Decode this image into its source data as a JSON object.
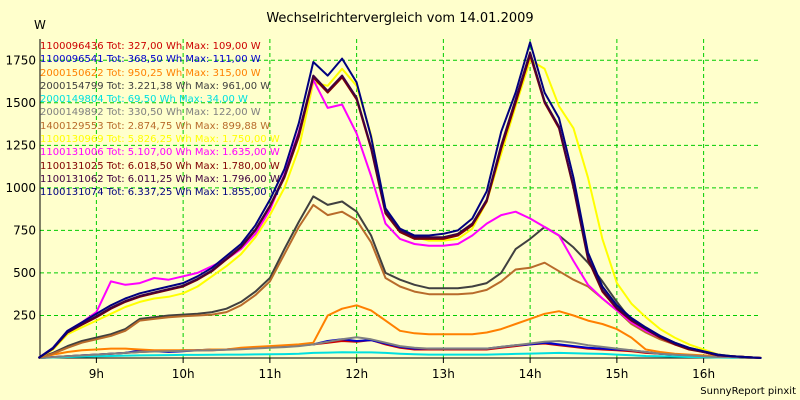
{
  "chart_data": {
    "type": "line",
    "title": "Wechselrichtervergleich vom 14.01.2009",
    "ylabel": "W",
    "footer": "SunnyReport pinxit",
    "ylim": [
      0,
      1875
    ],
    "xlim": [
      8.35,
      16.65
    ],
    "y_ticks": [
      250,
      500,
      750,
      1000,
      1250,
      1500,
      1750
    ],
    "x_ticks": [
      9,
      10,
      11,
      12,
      13,
      14,
      15,
      16
    ],
    "x_tick_labels": [
      "9h",
      "10h",
      "11h",
      "12h",
      "13h",
      "14h",
      "15h",
      "16h"
    ],
    "grid": true,
    "legend_position": "top-left",
    "x": [
      8.333,
      8.5,
      8.667,
      8.833,
      9.0,
      9.167,
      9.333,
      9.5,
      9.667,
      9.833,
      10.0,
      10.167,
      10.333,
      10.5,
      10.667,
      10.833,
      11.0,
      11.167,
      11.333,
      11.5,
      11.667,
      11.833,
      12.0,
      12.167,
      12.333,
      12.5,
      12.667,
      12.833,
      13.0,
      13.167,
      13.333,
      13.5,
      13.667,
      13.833,
      14.0,
      14.167,
      14.333,
      14.5,
      14.667,
      14.833,
      15.0,
      15.167,
      15.333,
      15.5,
      15.667,
      15.833,
      16.0,
      16.167,
      16.333,
      16.5,
      16.667
    ],
    "series": [
      {
        "name": "1100096436",
        "label": "1100096436 Tot: 327,00 Wh Max: 109,00 W",
        "color": "#cc0000",
        "values": [
          0,
          5,
          10,
          15,
          20,
          25,
          30,
          35,
          40,
          40,
          45,
          45,
          45,
          50,
          55,
          60,
          65,
          70,
          75,
          80,
          90,
          100,
          95,
          105,
          80,
          60,
          50,
          50,
          50,
          50,
          50,
          50,
          60,
          70,
          80,
          85,
          75,
          65,
          55,
          50,
          45,
          40,
          30,
          25,
          20,
          15,
          10,
          5,
          5,
          0,
          0
        ]
      },
      {
        "name": "1100096541",
        "label": "1100096541 Tot: 368,50 Wh Max: 111,00 W",
        "color": "#0000cc",
        "values": [
          0,
          5,
          10,
          15,
          20,
          25,
          30,
          45,
          40,
          35,
          40,
          45,
          50,
          50,
          55,
          60,
          65,
          70,
          75,
          80,
          100,
          110,
          100,
          105,
          85,
          65,
          55,
          55,
          55,
          55,
          55,
          55,
          65,
          75,
          80,
          90,
          80,
          70,
          60,
          55,
          50,
          45,
          35,
          25,
          20,
          15,
          10,
          5,
          5,
          0,
          0
        ]
      },
      {
        "name": "2000150622",
        "label": "2000150622 Tot: 950,25 Wh Max: 315,00 W",
        "color": "#ff8000",
        "values": [
          0,
          20,
          35,
          45,
          50,
          55,
          55,
          50,
          45,
          45,
          45,
          45,
          50,
          50,
          60,
          65,
          70,
          75,
          80,
          90,
          250,
          290,
          310,
          280,
          220,
          160,
          145,
          140,
          140,
          140,
          140,
          150,
          170,
          200,
          230,
          260,
          275,
          250,
          220,
          200,
          170,
          120,
          50,
          35,
          25,
          20,
          15,
          10,
          5,
          0,
          0
        ]
      },
      {
        "name": "2000154799",
        "label": "2000154799 Tot: 3.221,38 Wh Max: 961,00 W",
        "color": "#404040",
        "values": [
          0,
          30,
          70,
          100,
          120,
          140,
          170,
          230,
          240,
          250,
          255,
          260,
          270,
          290,
          330,
          390,
          470,
          640,
          800,
          950,
          900,
          920,
          860,
          720,
          500,
          460,
          430,
          410,
          410,
          410,
          420,
          440,
          500,
          640,
          700,
          770,
          720,
          650,
          560,
          450,
          330,
          220,
          170,
          130,
          90,
          60,
          40,
          20,
          10,
          5,
          0
        ]
      },
      {
        "name": "2000149804",
        "label": "2000149804 Tot: 69,50 Wh Max: 34,00 W",
        "color": "#00e0e0",
        "values": [
          0,
          3,
          6,
          8,
          10,
          12,
          14,
          15,
          16,
          17,
          18,
          18,
          19,
          20,
          20,
          21,
          22,
          23,
          25,
          30,
          32,
          34,
          33,
          33,
          30,
          25,
          22,
          20,
          20,
          20,
          20,
          20,
          22,
          24,
          26,
          28,
          30,
          28,
          26,
          24,
          20,
          16,
          12,
          10,
          8,
          6,
          4,
          3,
          2,
          1,
          0
        ]
      },
      {
        "name": "2000149892",
        "label": "2000149892 Tot: 330,50 Wh Max: 122,00 W",
        "color": "#808080",
        "values": [
          0,
          5,
          10,
          15,
          20,
          25,
          30,
          35,
          38,
          40,
          42,
          44,
          46,
          48,
          52,
          56,
          60,
          64,
          70,
          80,
          95,
          110,
          122,
          110,
          90,
          70,
          60,
          55,
          55,
          55,
          55,
          55,
          65,
          75,
          85,
          95,
          100,
          90,
          75,
          65,
          55,
          45,
          35,
          25,
          20,
          15,
          10,
          5,
          5,
          0,
          0
        ]
      },
      {
        "name": "1400129553",
        "label": "1400129553 Tot: 2.874,75 Wh Max: 899,88 W",
        "color": "#b86b2b",
        "values": [
          0,
          25,
          60,
          90,
          110,
          130,
          160,
          220,
          230,
          240,
          245,
          250,
          255,
          270,
          310,
          370,
          450,
          610,
          770,
          900,
          840,
          860,
          810,
          680,
          470,
          420,
          390,
          375,
          375,
          375,
          380,
          400,
          450,
          520,
          530,
          560,
          510,
          460,
          420,
          350,
          280,
          200,
          150,
          110,
          80,
          55,
          35,
          15,
          10,
          5,
          0
        ]
      },
      {
        "name": "1100130969",
        "label": "1100130969 Tot: 5.826,25 Wh Max: 1.750,00 W",
        "color": "#ffff00",
        "values": [
          0,
          50,
          140,
          180,
          220,
          260,
          300,
          330,
          350,
          360,
          380,
          420,
          480,
          540,
          610,
          710,
          840,
          1000,
          1230,
          1620,
          1600,
          1700,
          1600,
          1310,
          860,
          760,
          710,
          690,
          690,
          700,
          760,
          920,
          1200,
          1480,
          1750,
          1700,
          1480,
          1350,
          1060,
          700,
          440,
          320,
          240,
          170,
          120,
          80,
          50,
          20,
          10,
          5,
          0
        ]
      },
      {
        "name": "1100131006",
        "label": "1100131006 Tot: 5.107,00 Wh Max: 1.635,00 W",
        "color": "#ff00ff",
        "values": [
          0,
          60,
          160,
          210,
          270,
          450,
          430,
          440,
          470,
          460,
          480,
          500,
          540,
          580,
          640,
          730,
          870,
          1080,
          1330,
          1635,
          1470,
          1490,
          1320,
          1070,
          790,
          700,
          670,
          660,
          660,
          670,
          720,
          790,
          840,
          860,
          820,
          770,
          720,
          570,
          430,
          350,
          280,
          210,
          160,
          120,
          80,
          55,
          35,
          15,
          10,
          5,
          0
        ]
      },
      {
        "name": "1100131025",
        "label": "1100131025 Tot: 6.018,50 Wh Max: 1.780,00 W",
        "color": "#800000",
        "values": [
          0,
          55,
          150,
          195,
          240,
          290,
          330,
          360,
          380,
          400,
          420,
          460,
          510,
          580,
          650,
          750,
          890,
          1060,
          1300,
          1650,
          1560,
          1650,
          1520,
          1230,
          850,
          740,
          700,
          700,
          700,
          720,
          780,
          920,
          1230,
          1500,
          1780,
          1500,
          1350,
          1000,
          580,
          390,
          290,
          220,
          170,
          120,
          80,
          50,
          35,
          15,
          10,
          5,
          0
        ]
      },
      {
        "name": "1100131062",
        "label": "1100131062 Tot: 6.011,25 Wh Max: 1.796,00 W",
        "color": "#400040",
        "values": [
          0,
          55,
          150,
          200,
          245,
          295,
          335,
          365,
          385,
          405,
          425,
          465,
          515,
          585,
          655,
          755,
          895,
          1070,
          1320,
          1660,
          1570,
          1660,
          1530,
          1240,
          860,
          750,
          710,
          710,
          710,
          730,
          790,
          930,
          1250,
          1520,
          1796,
          1510,
          1360,
          1010,
          590,
          400,
          295,
          225,
          170,
          125,
          85,
          55,
          35,
          15,
          10,
          5,
          0
        ]
      },
      {
        "name": "1100131074",
        "label": "1100131074 Tot: 6.337,25 Wh Max: 1.855,00 W",
        "color": "#000080",
        "values": [
          0,
          60,
          160,
          210,
          260,
          310,
          350,
          380,
          400,
          420,
          440,
          480,
          530,
          600,
          670,
          780,
          930,
          1110,
          1380,
          1740,
          1660,
          1760,
          1620,
          1300,
          880,
          760,
          720,
          720,
          730,
          750,
          820,
          980,
          1330,
          1560,
          1855,
          1560,
          1410,
          1060,
          620,
          420,
          310,
          235,
          180,
          130,
          90,
          60,
          40,
          20,
          10,
          5,
          0
        ]
      }
    ]
  }
}
